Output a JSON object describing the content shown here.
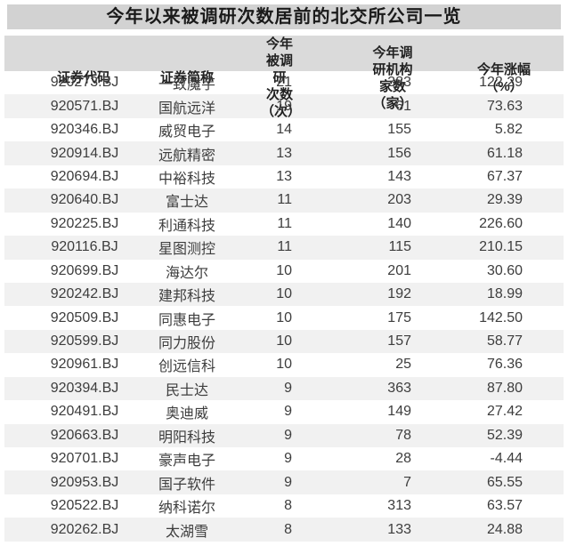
{
  "title": "今年以来被调研次数居前的北交所公司一览",
  "columns": [
    {
      "label": "证券代码"
    },
    {
      "label": "证券简称"
    },
    {
      "label": "今年被调研\n次数（次）"
    },
    {
      "label": "今年调研机构\n家数（家）"
    },
    {
      "label": "今年涨幅\n（%）"
    }
  ],
  "rows": [
    {
      "code": "920273.BJ",
      "name": "一致魔芋",
      "visits": "21",
      "institutions": "383",
      "gain": "122.29"
    },
    {
      "code": "920571.BJ",
      "name": "国航远洋",
      "visits": "19",
      "institutions": "61",
      "gain": "73.63"
    },
    {
      "code": "920346.BJ",
      "name": "威贸电子",
      "visits": "14",
      "institutions": "155",
      "gain": "5.82"
    },
    {
      "code": "920914.BJ",
      "name": "远航精密",
      "visits": "13",
      "institutions": "156",
      "gain": "61.18"
    },
    {
      "code": "920694.BJ",
      "name": "中裕科技",
      "visits": "13",
      "institutions": "143",
      "gain": "67.37"
    },
    {
      "code": "920640.BJ",
      "name": "富士达",
      "visits": "11",
      "institutions": "203",
      "gain": "29.39"
    },
    {
      "code": "920225.BJ",
      "name": "利通科技",
      "visits": "11",
      "institutions": "140",
      "gain": "226.60"
    },
    {
      "code": "920116.BJ",
      "name": "星图测控",
      "visits": "11",
      "institutions": "115",
      "gain": "210.15"
    },
    {
      "code": "920699.BJ",
      "name": "海达尔",
      "visits": "10",
      "institutions": "201",
      "gain": "30.60"
    },
    {
      "code": "920242.BJ",
      "name": "建邦科技",
      "visits": "10",
      "institutions": "192",
      "gain": "18.99"
    },
    {
      "code": "920509.BJ",
      "name": "同惠电子",
      "visits": "10",
      "institutions": "175",
      "gain": "142.50"
    },
    {
      "code": "920599.BJ",
      "name": "同力股份",
      "visits": "10",
      "institutions": "157",
      "gain": "58.77"
    },
    {
      "code": "920961.BJ",
      "name": "创远信科",
      "visits": "10",
      "institutions": "25",
      "gain": "76.36"
    },
    {
      "code": "920394.BJ",
      "name": "民士达",
      "visits": "9",
      "institutions": "363",
      "gain": "87.80"
    },
    {
      "code": "920491.BJ",
      "name": "奥迪威",
      "visits": "9",
      "institutions": "149",
      "gain": "27.42"
    },
    {
      "code": "920663.BJ",
      "name": "明阳科技",
      "visits": "9",
      "institutions": "78",
      "gain": "52.39"
    },
    {
      "code": "920701.BJ",
      "name": "豪声电子",
      "visits": "9",
      "institutions": "28",
      "gain": "-4.44"
    },
    {
      "code": "920953.BJ",
      "name": "国子软件",
      "visits": "9",
      "institutions": "7",
      "gain": "65.55"
    },
    {
      "code": "920522.BJ",
      "name": "纳科诺尔",
      "visits": "8",
      "institutions": "313",
      "gain": "63.57"
    },
    {
      "code": "920262.BJ",
      "name": "太湖雪",
      "visits": "8",
      "institutions": "133",
      "gain": "24.88"
    }
  ],
  "colors": {
    "title_bar_bg": "#d2d2d2",
    "header_bg": "#dadada",
    "stripe_bg": "#f1f1f1",
    "row_bg": "#ffffff",
    "text": "#3d3d3d"
  },
  "chart_data": {
    "type": "table",
    "title": "今年以来被调研次数居前的北交所公司一览",
    "columns": [
      "证券代码",
      "证券简称",
      "今年被调研次数（次）",
      "今年调研机构家数（家）",
      "今年涨幅（%）"
    ],
    "rows": [
      [
        "920273.BJ",
        "一致魔芋",
        21,
        383,
        122.29
      ],
      [
        "920571.BJ",
        "国航远洋",
        19,
        61,
        73.63
      ],
      [
        "920346.BJ",
        "威贸电子",
        14,
        155,
        5.82
      ],
      [
        "920914.BJ",
        "远航精密",
        13,
        156,
        61.18
      ],
      [
        "920694.BJ",
        "中裕科技",
        13,
        143,
        67.37
      ],
      [
        "920640.BJ",
        "富士达",
        11,
        203,
        29.39
      ],
      [
        "920225.BJ",
        "利通科技",
        11,
        140,
        226.6
      ],
      [
        "920116.BJ",
        "星图测控",
        11,
        115,
        210.15
      ],
      [
        "920699.BJ",
        "海达尔",
        10,
        201,
        30.6
      ],
      [
        "920242.BJ",
        "建邦科技",
        10,
        192,
        18.99
      ],
      [
        "920509.BJ",
        "同惠电子",
        10,
        175,
        142.5
      ],
      [
        "920599.BJ",
        "同力股份",
        10,
        157,
        58.77
      ],
      [
        "920961.BJ",
        "创远信科",
        10,
        25,
        76.36
      ],
      [
        "920394.BJ",
        "民士达",
        9,
        363,
        87.8
      ],
      [
        "920491.BJ",
        "奥迪威",
        9,
        149,
        27.42
      ],
      [
        "920663.BJ",
        "明阳科技",
        9,
        78,
        52.39
      ],
      [
        "920701.BJ",
        "豪声电子",
        9,
        28,
        -4.44
      ],
      [
        "920953.BJ",
        "国子软件",
        9,
        7,
        65.55
      ],
      [
        "920522.BJ",
        "纳科诺尔",
        8,
        313,
        63.57
      ],
      [
        "920262.BJ",
        "太湖雪",
        8,
        133,
        24.88
      ]
    ]
  }
}
